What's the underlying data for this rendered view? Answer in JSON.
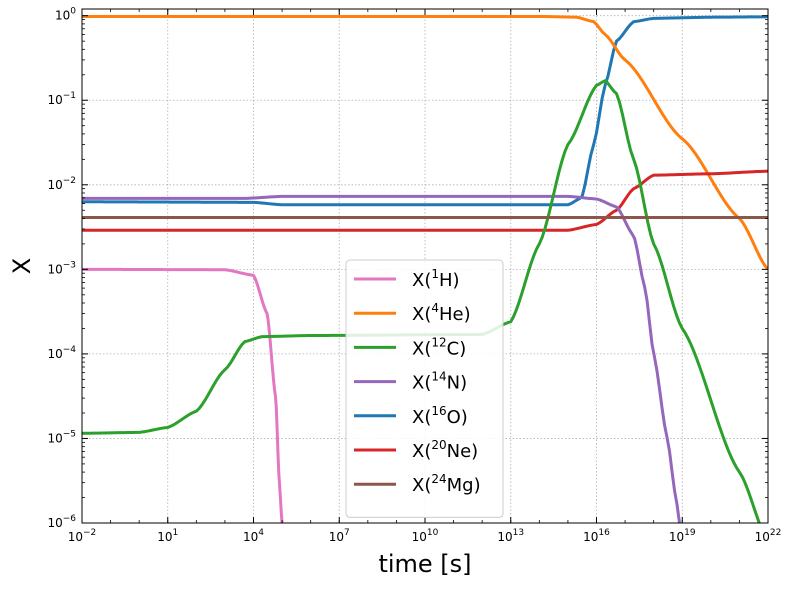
{
  "chart_data": {
    "type": "line",
    "xlabel": "time [s]",
    "ylabel": "X",
    "xscale": "log",
    "yscale": "log",
    "xlim": [
      0.01,
      1e+22
    ],
    "ylim": [
      1e-06,
      1.2
    ],
    "grid": true,
    "legend_position": "lower-center",
    "x_ticks": [
      {
        "value": 0.01,
        "base": "10",
        "exp": "−2"
      },
      {
        "value": 10,
        "base": "10",
        "exp": "1"
      },
      {
        "value": 10000.0,
        "base": "10",
        "exp": "4"
      },
      {
        "value": 10000000.0,
        "base": "10",
        "exp": "7"
      },
      {
        "value": 10000000000.0,
        "base": "10",
        "exp": "10"
      },
      {
        "value": 10000000000000.0,
        "base": "10",
        "exp": "13"
      },
      {
        "value": 1e+16,
        "base": "10",
        "exp": "16"
      },
      {
        "value": 1e+19,
        "base": "10",
        "exp": "19"
      },
      {
        "value": 1e+22,
        "base": "10",
        "exp": "22"
      }
    ],
    "y_ticks": [
      {
        "value": 1e-06,
        "base": "10",
        "exp": "−6"
      },
      {
        "value": 1e-05,
        "base": "10",
        "exp": "−5"
      },
      {
        "value": 0.0001,
        "base": "10",
        "exp": "−4"
      },
      {
        "value": 0.001,
        "base": "10",
        "exp": "−3"
      },
      {
        "value": 0.01,
        "base": "10",
        "exp": "−2"
      },
      {
        "value": 0.1,
        "base": "10",
        "exp": "−1"
      },
      {
        "value": 1,
        "base": "10",
        "exp": "0"
      }
    ],
    "series": [
      {
        "name": "X(1H)",
        "label_pre": "X(",
        "label_sup": "1",
        "label_post": "H)",
        "color": "#e377c2",
        "points": [
          [
            0.01,
            0.001
          ],
          [
            1000.0,
            0.00099
          ],
          [
            10000.0,
            0.00085
          ],
          [
            30000.0,
            0.0003
          ],
          [
            60000.0,
            3e-05
          ],
          [
            80000.0,
            3e-06
          ],
          [
            100000.0,
            1e-06
          ]
        ]
      },
      {
        "name": "X(4He)",
        "label_pre": "X(",
        "label_sup": "4",
        "label_post": "He)",
        "color": "#ff7f0e",
        "points": [
          [
            0.01,
            0.98
          ],
          [
            100000000000000.0,
            0.98
          ],
          [
            2000000000000000.0,
            0.96
          ],
          [
            8000000000000000.0,
            0.85
          ],
          [
            2e+16,
            0.6
          ],
          [
            1e+17,
            0.3
          ],
          [
            1e+19,
            0.035
          ],
          [
            1e+21,
            0.004
          ],
          [
            1e+22,
            0.001
          ]
        ]
      },
      {
        "name": "X(12C)",
        "label_pre": "X(",
        "label_sup": "12",
        "label_post": "C)",
        "color": "#2ca02c",
        "points": [
          [
            0.01,
            1.15e-05
          ],
          [
            1,
            1.18e-05
          ],
          [
            10,
            1.35e-05
          ],
          [
            100,
            2.1e-05
          ],
          [
            1000.0,
            6.5e-05
          ],
          [
            5000.0,
            0.00014
          ],
          [
            20000.0,
            0.00016
          ],
          [
            1000000.0,
            0.000165
          ],
          [
            1000000000000.0,
            0.00017
          ],
          [
            10000000000000.0,
            0.00024
          ],
          [
            100000000000000.0,
            0.002
          ],
          [
            1000000000000000.0,
            0.03
          ],
          [
            1e+16,
            0.15
          ],
          [
            2e+16,
            0.17
          ],
          [
            5e+16,
            0.12
          ],
          [
            2e+17,
            0.02
          ],
          [
            1e+18,
            0.002
          ],
          [
            1e+19,
            0.0002
          ],
          [
            1e+21,
            4e-06
          ],
          [
            1e+22,
            6e-07
          ]
        ]
      },
      {
        "name": "X(14N)",
        "label_pre": "X(",
        "label_sup": "14",
        "label_post": "N)",
        "color": "#9467bd",
        "points": [
          [
            0.01,
            0.0069
          ],
          [
            5000.0,
            0.0069
          ],
          [
            100000.0,
            0.0073
          ],
          [
            1000000000000000.0,
            0.0073
          ],
          [
            1e+16,
            0.0068
          ],
          [
            5e+16,
            0.0055
          ],
          [
            2e+17,
            0.0025
          ],
          [
            5e+17,
            0.0006
          ],
          [
            1e+18,
            0.0001
          ],
          [
            3e+18,
            1e-05
          ],
          [
            6e+18,
            2e-06
          ],
          [
            8e+18,
            1e-06
          ]
        ]
      },
      {
        "name": "X(16O)",
        "label_pre": "X(",
        "label_sup": "16",
        "label_post": "O)",
        "color": "#1f77b4",
        "points": [
          [
            0.01,
            0.0063
          ],
          [
            10000.0,
            0.0062
          ],
          [
            100000.0,
            0.0058
          ],
          [
            1000000000000000.0,
            0.0058
          ],
          [
            3000000000000000.0,
            0.007
          ],
          [
            8000000000000000.0,
            0.03
          ],
          [
            2e+16,
            0.15
          ],
          [
            5e+16,
            0.5
          ],
          [
            2e+17,
            0.85
          ],
          [
            1e+18,
            0.93
          ],
          [
            1e+20,
            0.96
          ],
          [
            1e+22,
            0.97
          ]
        ]
      },
      {
        "name": "X(20Ne)",
        "label_pre": "X(",
        "label_sup": "20",
        "label_post": "Ne)",
        "color": "#d62728",
        "points": [
          [
            0.01,
            0.0029
          ],
          [
            1000000000000000.0,
            0.0029
          ],
          [
            1e+16,
            0.0034
          ],
          [
            5e+16,
            0.005
          ],
          [
            2e+17,
            0.009
          ],
          [
            1e+18,
            0.013
          ],
          [
            1e+20,
            0.0135
          ],
          [
            1e+22,
            0.0145
          ]
        ]
      },
      {
        "name": "X(24Mg)",
        "label_pre": "X(",
        "label_sup": "24",
        "label_post": "Mg)",
        "color": "#8c564b",
        "points": [
          [
            0.01,
            0.0041
          ],
          [
            1e+22,
            0.0041
          ]
        ]
      }
    ]
  }
}
